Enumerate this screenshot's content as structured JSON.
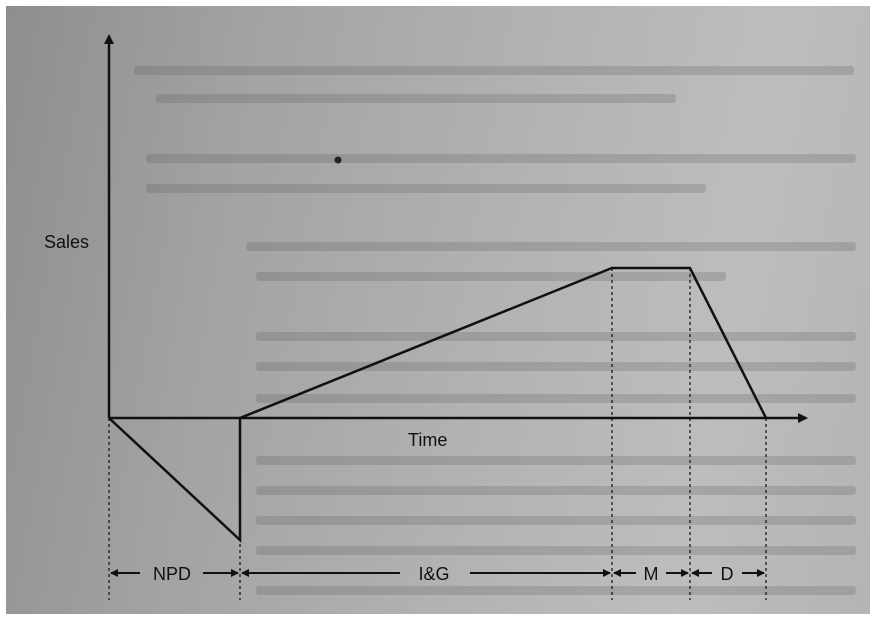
{
  "diagram": {
    "y_axis_label": "Sales",
    "x_axis_label": "Time",
    "phases": [
      {
        "id": "npd",
        "label": "NPD"
      },
      {
        "id": "ig",
        "label": "I&G"
      },
      {
        "id": "m",
        "label": "M"
      },
      {
        "id": "d",
        "label": "D"
      }
    ]
  }
}
